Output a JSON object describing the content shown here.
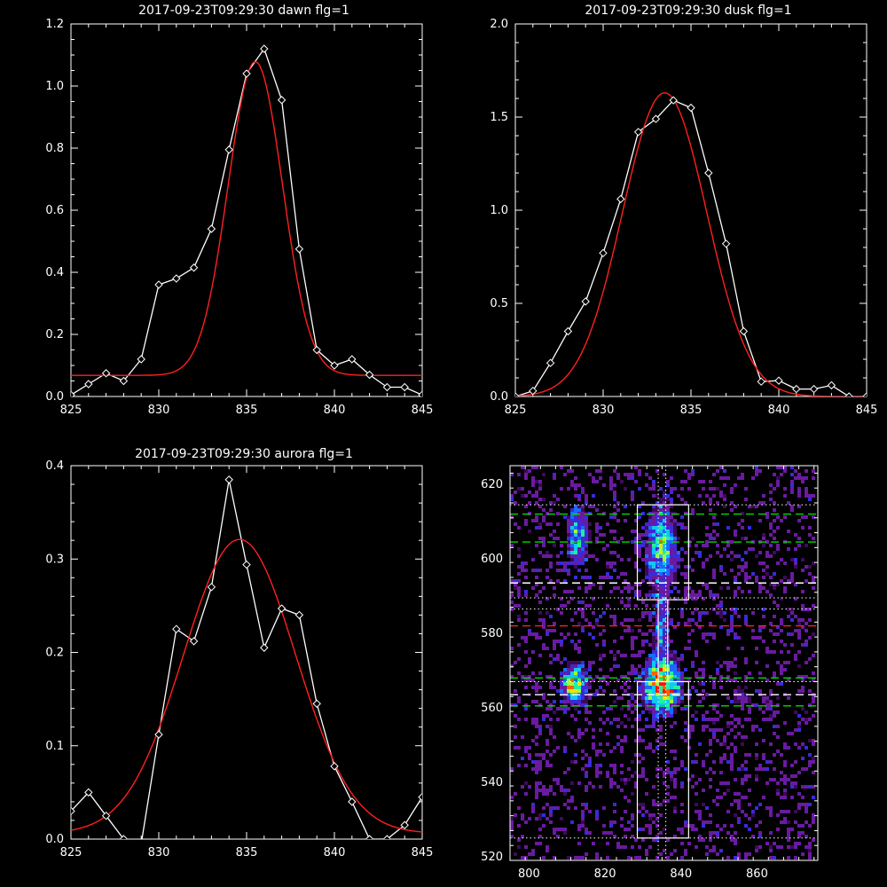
{
  "colors": {
    "background": "#000000",
    "axis": "#ffffff",
    "data_line": "#ffffff",
    "fit_line": "#ff2020",
    "green_dash": "#00dd00",
    "red_dash": "#ff2020",
    "white_dash": "#ffffff"
  },
  "chart_data": [
    {
      "id": "dawn",
      "type": "line",
      "title": "2017-09-23T09:29:30 dawn flg=1",
      "xlim": [
        825,
        845
      ],
      "ylim": [
        0,
        1.2
      ],
      "xticks": [
        825,
        830,
        835,
        840,
        845
      ],
      "xtick_labels": [
        "825",
        "830",
        "835",
        "840",
        "845"
      ],
      "yticks": [
        0,
        0.2,
        0.4,
        0.6,
        0.8,
        1.0,
        1.2
      ],
      "ytick_labels": [
        "0.0",
        "0.2",
        "0.4",
        "0.6",
        "0.8",
        "1.0",
        "1.2"
      ],
      "series": [
        {
          "role": "data",
          "marker": "diamond",
          "x": [
            825,
            826,
            827,
            828,
            829,
            830,
            831,
            832,
            833,
            834,
            835,
            836,
            837,
            838,
            839,
            840,
            841,
            842,
            843,
            844,
            845
          ],
          "y": [
            0.005,
            0.04,
            0.075,
            0.05,
            0.12,
            0.36,
            0.38,
            0.415,
            0.54,
            0.795,
            1.04,
            1.12,
            0.955,
            0.475,
            0.15,
            0.1,
            0.12,
            0.07,
            0.03,
            0.03,
            0.005
          ]
        },
        {
          "role": "fit",
          "gauss": {
            "amplitude": 1.01,
            "center": 835.5,
            "sigma": 1.55,
            "offset": 0.068
          }
        }
      ]
    },
    {
      "id": "dusk",
      "type": "line",
      "title": "2017-09-23T09:29:30 dusk flg=1",
      "xlim": [
        825,
        845
      ],
      "ylim": [
        0,
        2.0
      ],
      "xticks": [
        825,
        830,
        835,
        840,
        845
      ],
      "xtick_labels": [
        "825",
        "830",
        "835",
        "840",
        "845"
      ],
      "yticks": [
        0,
        0.5,
        1.0,
        1.5,
        2.0
      ],
      "ytick_labels": [
        "0.0",
        "0.5",
        "1.0",
        "1.5",
        "2.0"
      ],
      "series": [
        {
          "role": "data",
          "marker": "diamond",
          "x": [
            825,
            826,
            827,
            828,
            829,
            830,
            831,
            832,
            833,
            834,
            835,
            836,
            837,
            838,
            839,
            840,
            841,
            842,
            843,
            844,
            845
          ],
          "y": [
            0.0,
            0.03,
            0.18,
            0.35,
            0.51,
            0.77,
            1.06,
            1.42,
            1.49,
            1.59,
            1.55,
            1.2,
            0.82,
            0.35,
            0.08,
            0.085,
            0.04,
            0.04,
            0.06,
            0.0,
            0.0
          ]
        },
        {
          "role": "fit",
          "gauss": {
            "amplitude": 1.63,
            "center": 833.5,
            "sigma": 2.4,
            "offset": 0.0
          }
        }
      ]
    },
    {
      "id": "aurora",
      "type": "line",
      "title": "2017-09-23T09:29:30 aurora flg=1",
      "xlim": [
        825,
        845
      ],
      "ylim": [
        0,
        0.4
      ],
      "xticks": [
        825,
        830,
        835,
        840,
        845
      ],
      "xtick_labels": [
        "825",
        "830",
        "835",
        "840",
        "845"
      ],
      "yticks": [
        0,
        0.1,
        0.2,
        0.3,
        0.4
      ],
      "ytick_labels": [
        "0.0",
        "0.1",
        "0.2",
        "0.3",
        "0.4"
      ],
      "series": [
        {
          "role": "data",
          "marker": "diamond",
          "x": [
            825,
            826,
            827,
            828,
            829,
            830,
            831,
            832,
            833,
            834,
            835,
            836,
            837,
            838,
            839,
            840,
            841,
            842,
            843,
            844,
            845
          ],
          "y": [
            0.03,
            0.05,
            0.025,
            0.0,
            -0.005,
            0.112,
            0.225,
            0.212,
            0.27,
            0.385,
            0.294,
            0.205,
            0.247,
            0.24,
            0.145,
            0.078,
            0.04,
            0.0,
            0.0,
            0.015,
            0.045
          ]
        },
        {
          "role": "fit",
          "gauss": {
            "amplitude": 0.315,
            "center": 834.6,
            "sigma": 3.2,
            "offset": 0.006
          }
        }
      ]
    },
    {
      "id": "image",
      "type": "heatmap",
      "title": "",
      "xlim": [
        795,
        876
      ],
      "ylim": [
        519,
        625
      ],
      "xticks": [
        800,
        820,
        840,
        860
      ],
      "xtick_labels": [
        "800",
        "820",
        "840",
        "860"
      ],
      "yticks": [
        520,
        540,
        560,
        580,
        600,
        620
      ],
      "ytick_labels": [
        "520",
        "540",
        "560",
        "580",
        "600",
        "620"
      ],
      "colormap": [
        "#000000",
        "#3c0a5a",
        "#6a1aa0",
        "#3a2ad8",
        "#1a6aff",
        "#10c8f0",
        "#20f0a0",
        "#a0ff30",
        "#ffe000",
        "#ff6000",
        "#ff1010"
      ],
      "blobs": [
        {
          "x": 835,
          "y": 603,
          "sx": 2.4,
          "sy": 7.5,
          "amp": 0.62
        },
        {
          "x": 813,
          "y": 606,
          "sx": 1.8,
          "sy": 4.5,
          "amp": 0.58
        },
        {
          "x": 835,
          "y": 566,
          "sx": 3.0,
          "sy": 4.2,
          "amp": 1.0
        },
        {
          "x": 812,
          "y": 566,
          "sx": 2.2,
          "sy": 3.2,
          "amp": 0.75
        },
        {
          "x": 835,
          "y": 580,
          "sx": 1.4,
          "sy": 7.0,
          "amp": 0.35
        },
        {
          "x": 856,
          "y": 563,
          "sx": 2.0,
          "sy": 2.0,
          "amp": 0.22
        },
        {
          "x": 851,
          "y": 584,
          "sx": 2.0,
          "sy": 3.0,
          "amp": 0.12
        }
      ],
      "boxes": [
        {
          "x0": 828.5,
          "x1": 842,
          "y0": 589,
          "y1": 614.5
        },
        {
          "x0": 828.5,
          "x1": 842,
          "y0": 525,
          "y1": 567
        },
        {
          "x0": 834,
          "x1": 836.5,
          "y0": 567,
          "y1": 589
        }
      ],
      "hlines": [
        {
          "y": 614.5,
          "style": "dotted",
          "color": "white"
        },
        {
          "y": 612,
          "style": "dashed",
          "color": "green"
        },
        {
          "y": 604.5,
          "style": "dashed",
          "color": "green"
        },
        {
          "y": 593.5,
          "style": "dashed",
          "color": "white"
        },
        {
          "y": 589.5,
          "style": "dotted",
          "color": "white"
        },
        {
          "y": 586.5,
          "style": "dotted",
          "color": "white"
        },
        {
          "y": 582,
          "style": "dashed",
          "color": "red"
        },
        {
          "y": 568,
          "style": "dashed",
          "color": "green"
        },
        {
          "y": 567,
          "style": "dotted",
          "color": "white"
        },
        {
          "y": 563.5,
          "style": "dashed",
          "color": "white"
        },
        {
          "y": 560.5,
          "style": "dashed",
          "color": "green"
        },
        {
          "y": 525,
          "style": "dotted",
          "color": "white"
        }
      ],
      "vlines": [
        {
          "x": 834,
          "style": "dotted",
          "color": "white"
        },
        {
          "x": 836,
          "style": "dotted",
          "color": "white"
        }
      ]
    }
  ]
}
